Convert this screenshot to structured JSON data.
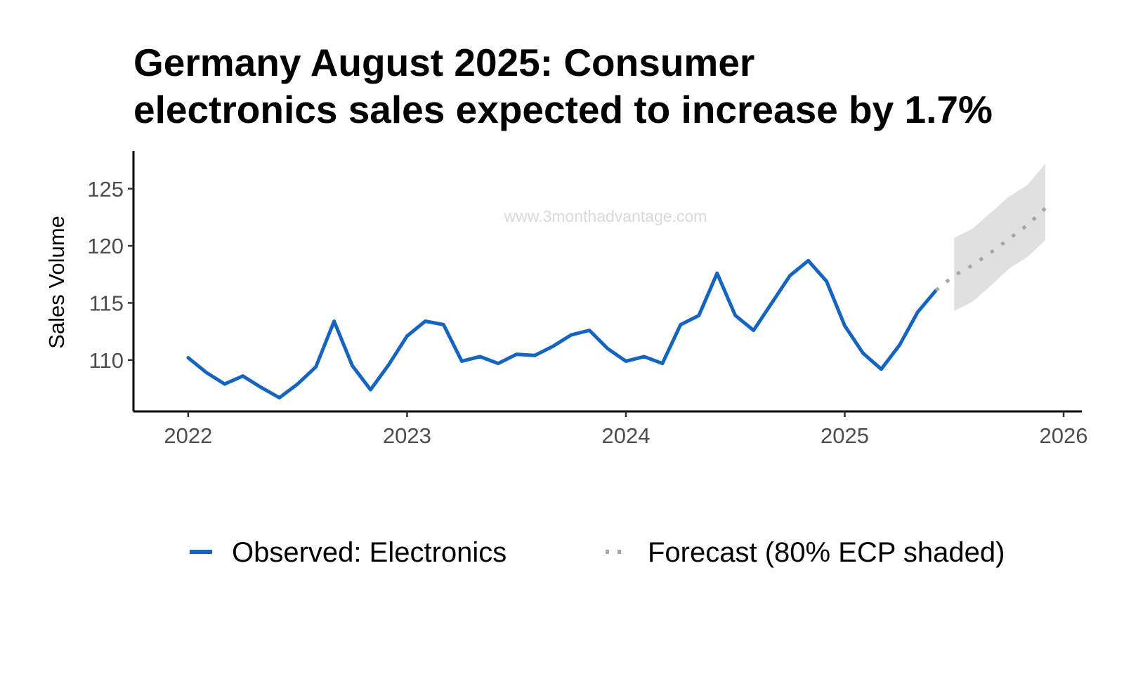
{
  "chart_data": {
    "type": "line",
    "title_lines": [
      "Germany August 2025: Consumer",
      "electronics sales expected to increase by 1.7%"
    ],
    "xlabel": "",
    "ylabel": "Sales Volume",
    "xlim": [
      "2021-10-01",
      "2026-02-01"
    ],
    "ylim": [
      105.5,
      128
    ],
    "x_ticks": [
      "2022",
      "2023",
      "2024",
      "2025",
      "2026"
    ],
    "y_ticks": [
      110,
      115,
      120,
      125
    ],
    "grid": false,
    "watermark": "www.3monthadvantage.com",
    "legend": {
      "position": "bottom",
      "items": [
        {
          "label": "Observed: Electronics",
          "style": "solid",
          "color": "#1565c0"
        },
        {
          "label": "Forecast (80% ECP shaded)",
          "style": "dotted",
          "color": "#a6a6a6"
        }
      ]
    },
    "series": [
      {
        "name": "Observed: Electronics",
        "style": "solid",
        "color": "#1565c0",
        "x": [
          "2022-01",
          "2022-02",
          "2022-03",
          "2022-04",
          "2022-05",
          "2022-06",
          "2022-07",
          "2022-08",
          "2022-09",
          "2022-10",
          "2022-11",
          "2022-12",
          "2023-01",
          "2023-02",
          "2023-03",
          "2023-04",
          "2023-05",
          "2023-06",
          "2023-07",
          "2023-08",
          "2023-09",
          "2023-10",
          "2023-11",
          "2023-12",
          "2024-01",
          "2024-02",
          "2024-03",
          "2024-04",
          "2024-05",
          "2024-06",
          "2024-07",
          "2024-08",
          "2024-09",
          "2024-10",
          "2024-11",
          "2024-12",
          "2025-01",
          "2025-02",
          "2025-03",
          "2025-04",
          "2025-05",
          "2025-06"
        ],
        "values": [
          110.2,
          108.9,
          107.9,
          108.6,
          107.6,
          106.7,
          107.9,
          109.4,
          113.4,
          109.5,
          107.4,
          109.6,
          112.1,
          113.4,
          113.1,
          109.9,
          110.3,
          109.7,
          110.5,
          110.4,
          111.2,
          112.2,
          112.6,
          111.0,
          109.9,
          110.3,
          109.7,
          113.1,
          113.9,
          117.6,
          113.9,
          112.6,
          115.0,
          117.4,
          118.7,
          116.9,
          113.0,
          110.6,
          109.2,
          111.3,
          114.2,
          116.1
        ]
      },
      {
        "name": "Forecast (80% ECP shaded)",
        "style": "dotted",
        "color": "#a6a6a6",
        "x": [
          "2025-06",
          "2025-07",
          "2025-08",
          "2025-09",
          "2025-10",
          "2025-11",
          "2025-12"
        ],
        "values": [
          116.1,
          117.4,
          118.3,
          119.4,
          120.6,
          121.8,
          123.3
        ],
        "band": {
          "x": [
            "2025-07",
            "2025-08",
            "2025-09",
            "2025-10",
            "2025-11",
            "2025-12"
          ],
          "lower": [
            114.3,
            115.1,
            116.5,
            118.0,
            119.0,
            120.5
          ],
          "upper": [
            120.7,
            121.5,
            122.9,
            124.3,
            125.3,
            127.2
          ]
        }
      }
    ]
  }
}
